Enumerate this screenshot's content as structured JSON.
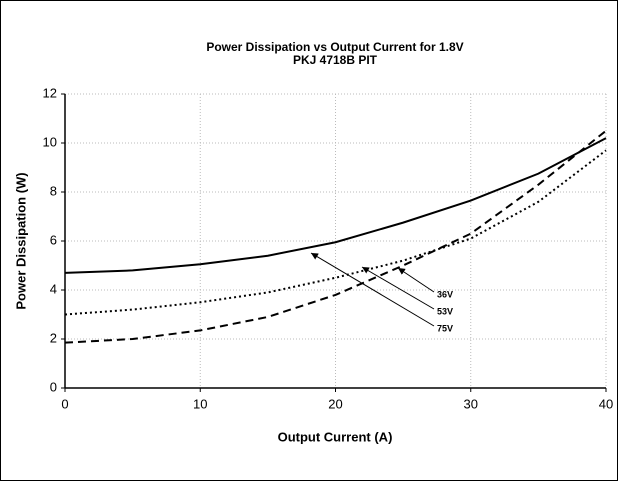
{
  "chart_data": {
    "type": "line",
    "title": "Power Dissipation vs Output Current for 1.8V",
    "subtitle": "PKJ 4718B PIT",
    "x_label": "Output Current (A)",
    "y_label": "Power Dissipation (W)",
    "x": [
      0,
      5,
      10,
      15,
      20,
      25,
      30,
      35,
      40
    ],
    "series": [
      {
        "name": "36V",
        "color": "#000000",
        "dash": "dotted",
        "values": [
          3.0,
          3.2,
          3.5,
          3.9,
          4.5,
          5.2,
          6.1,
          7.6,
          9.7
        ]
      },
      {
        "name": "53V",
        "color": "#000000",
        "dash": "dashed",
        "values": [
          1.85,
          2.0,
          2.35,
          2.9,
          3.8,
          5.0,
          6.3,
          8.3,
          10.5
        ]
      },
      {
        "name": "75V",
        "color": "#000000",
        "dash": "solid",
        "values": [
          4.7,
          4.8,
          5.05,
          5.4,
          5.95,
          6.75,
          7.65,
          8.75,
          10.2
        ]
      }
    ],
    "xlim": [
      0,
      40
    ],
    "xticks": [
      0,
      10,
      20,
      30,
      40
    ],
    "ylim": [
      0,
      12
    ],
    "yticks": [
      0,
      2,
      4,
      6,
      8,
      10,
      12
    ],
    "grid": true
  }
}
